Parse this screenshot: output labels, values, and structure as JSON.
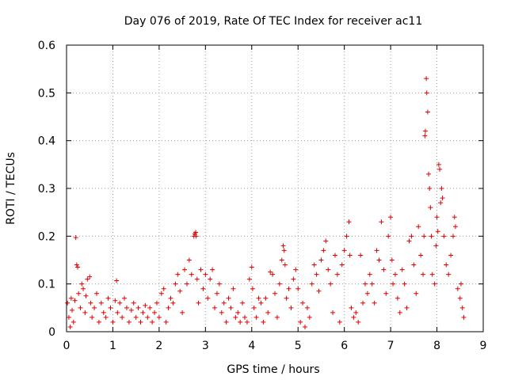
{
  "chart_data": {
    "type": "scatter",
    "title": "Day 076 of 2019, Rate Of TEC Index for receiver ac11",
    "xlabel": "GPS time / hours",
    "ylabel": "ROTI / TECUs",
    "xlim": [
      0,
      9
    ],
    "ylim": [
      0,
      0.6
    ],
    "xticks": [
      "0",
      "1",
      "2",
      "3",
      "4",
      "5",
      "6",
      "7",
      "8",
      "9"
    ],
    "yticks": [
      "0",
      "0.1",
      "0.2",
      "0.3",
      "0.4",
      "0.5",
      "0.6"
    ],
    "grid": true,
    "marker": "+",
    "color": "#e00000",
    "series": [
      {
        "name": "ROTI",
        "points": [
          [
            0.02,
            0.06
          ],
          [
            0.05,
            0.03
          ],
          [
            0.08,
            0.01
          ],
          [
            0.1,
            0.07
          ],
          [
            0.12,
            0.045
          ],
          [
            0.15,
            0.02
          ],
          [
            0.18,
            0.065
          ],
          [
            0.2,
            0.197
          ],
          [
            0.22,
            0.14
          ],
          [
            0.24,
            0.135
          ],
          [
            0.26,
            0.08
          ],
          [
            0.3,
            0.05
          ],
          [
            0.33,
            0.1
          ],
          [
            0.36,
            0.09
          ],
          [
            0.4,
            0.04
          ],
          [
            0.42,
            0.075
          ],
          [
            0.45,
            0.11
          ],
          [
            0.5,
            0.115
          ],
          [
            0.52,
            0.06
          ],
          [
            0.55,
            0.03
          ],
          [
            0.6,
            0.05
          ],
          [
            0.65,
            0.08
          ],
          [
            0.7,
            0.02
          ],
          [
            0.75,
            0.06
          ],
          [
            0.8,
            0.04
          ],
          [
            0.85,
            0.03
          ],
          [
            0.9,
            0.07
          ],
          [
            0.95,
            0.05
          ],
          [
            1.0,
            0.02
          ],
          [
            1.05,
            0.065
          ],
          [
            1.08,
            0.107
          ],
          [
            1.1,
            0.04
          ],
          [
            1.15,
            0.06
          ],
          [
            1.2,
            0.03
          ],
          [
            1.25,
            0.07
          ],
          [
            1.3,
            0.05
          ],
          [
            1.35,
            0.02
          ],
          [
            1.4,
            0.045
          ],
          [
            1.45,
            0.06
          ],
          [
            1.5,
            0.03
          ],
          [
            1.55,
            0.05
          ],
          [
            1.6,
            0.02
          ],
          [
            1.65,
            0.04
          ],
          [
            1.7,
            0.055
          ],
          [
            1.75,
            0.03
          ],
          [
            1.8,
            0.05
          ],
          [
            1.85,
            0.02
          ],
          [
            1.9,
            0.04
          ],
          [
            1.95,
            0.06
          ],
          [
            2.0,
            0.03
          ],
          [
            2.05,
            0.08
          ],
          [
            2.1,
            0.09
          ],
          [
            2.15,
            0.02
          ],
          [
            2.2,
            0.05
          ],
          [
            2.25,
            0.07
          ],
          [
            2.3,
            0.06
          ],
          [
            2.35,
            0.1
          ],
          [
            2.4,
            0.12
          ],
          [
            2.45,
            0.085
          ],
          [
            2.5,
            0.04
          ],
          [
            2.55,
            0.13
          ],
          [
            2.6,
            0.1
          ],
          [
            2.65,
            0.15
          ],
          [
            2.7,
            0.12
          ],
          [
            2.75,
            0.2
          ],
          [
            2.77,
            0.205
          ],
          [
            2.79,
            0.208
          ],
          [
            2.8,
            0.2
          ],
          [
            2.82,
            0.11
          ],
          [
            2.85,
            0.06
          ],
          [
            2.9,
            0.13
          ],
          [
            2.95,
            0.09
          ],
          [
            3.0,
            0.12
          ],
          [
            3.05,
            0.07
          ],
          [
            3.1,
            0.11
          ],
          [
            3.15,
            0.13
          ],
          [
            3.2,
            0.05
          ],
          [
            3.25,
            0.08
          ],
          [
            3.3,
            0.1
          ],
          [
            3.35,
            0.04
          ],
          [
            3.4,
            0.06
          ],
          [
            3.45,
            0.02
          ],
          [
            3.5,
            0.07
          ],
          [
            3.55,
            0.05
          ],
          [
            3.6,
            0.09
          ],
          [
            3.65,
            0.03
          ],
          [
            3.7,
            0.04
          ],
          [
            3.75,
            0.02
          ],
          [
            3.8,
            0.06
          ],
          [
            3.85,
            0.03
          ],
          [
            3.9,
            0.02
          ],
          [
            3.95,
            0.11
          ],
          [
            4.0,
            0.135
          ],
          [
            4.02,
            0.09
          ],
          [
            4.05,
            0.05
          ],
          [
            4.1,
            0.03
          ],
          [
            4.15,
            0.07
          ],
          [
            4.2,
            0.06
          ],
          [
            4.25,
            0.02
          ],
          [
            4.3,
            0.07
          ],
          [
            4.35,
            0.04
          ],
          [
            4.4,
            0.125
          ],
          [
            4.45,
            0.12
          ],
          [
            4.5,
            0.08
          ],
          [
            4.55,
            0.03
          ],
          [
            4.6,
            0.1
          ],
          [
            4.65,
            0.15
          ],
          [
            4.68,
            0.18
          ],
          [
            4.7,
            0.17
          ],
          [
            4.72,
            0.14
          ],
          [
            4.75,
            0.07
          ],
          [
            4.8,
            0.09
          ],
          [
            4.85,
            0.05
          ],
          [
            4.9,
            0.11
          ],
          [
            4.95,
            0.13
          ],
          [
            5.0,
            0.09
          ],
          [
            5.05,
            0.02
          ],
          [
            5.1,
            0.06
          ],
          [
            5.15,
            0.01
          ],
          [
            5.2,
            0.05
          ],
          [
            5.25,
            0.03
          ],
          [
            5.3,
            0.1
          ],
          [
            5.35,
            0.14
          ],
          [
            5.4,
            0.12
          ],
          [
            5.45,
            0.085
          ],
          [
            5.5,
            0.15
          ],
          [
            5.55,
            0.17
          ],
          [
            5.6,
            0.19
          ],
          [
            5.65,
            0.13
          ],
          [
            5.7,
            0.1
          ],
          [
            5.75,
            0.04
          ],
          [
            5.8,
            0.16
          ],
          [
            5.85,
            0.12
          ],
          [
            5.9,
            0.02
          ],
          [
            5.95,
            0.14
          ],
          [
            6.0,
            0.17
          ],
          [
            6.05,
            0.2
          ],
          [
            6.1,
            0.23
          ],
          [
            6.12,
            0.16
          ],
          [
            6.15,
            0.05
          ],
          [
            6.2,
            0.03
          ],
          [
            6.25,
            0.04
          ],
          [
            6.3,
            0.02
          ],
          [
            6.35,
            0.16
          ],
          [
            6.4,
            0.06
          ],
          [
            6.45,
            0.1
          ],
          [
            6.5,
            0.08
          ],
          [
            6.55,
            0.12
          ],
          [
            6.6,
            0.1
          ],
          [
            6.65,
            0.06
          ],
          [
            6.7,
            0.17
          ],
          [
            6.75,
            0.15
          ],
          [
            6.8,
            0.23
          ],
          [
            6.85,
            0.13
          ],
          [
            6.9,
            0.08
          ],
          [
            6.95,
            0.2
          ],
          [
            7.0,
            0.24
          ],
          [
            7.03,
            0.15
          ],
          [
            7.05,
            0.1
          ],
          [
            7.1,
            0.12
          ],
          [
            7.15,
            0.07
          ],
          [
            7.2,
            0.04
          ],
          [
            7.25,
            0.13
          ],
          [
            7.3,
            0.1
          ],
          [
            7.35,
            0.05
          ],
          [
            7.4,
            0.19
          ],
          [
            7.45,
            0.2
          ],
          [
            7.5,
            0.14
          ],
          [
            7.55,
            0.08
          ],
          [
            7.6,
            0.22
          ],
          [
            7.65,
            0.16
          ],
          [
            7.7,
            0.12
          ],
          [
            7.72,
            0.2
          ],
          [
            7.74,
            0.41
          ],
          [
            7.75,
            0.42
          ],
          [
            7.77,
            0.53
          ],
          [
            7.78,
            0.5
          ],
          [
            7.8,
            0.46
          ],
          [
            7.82,
            0.33
          ],
          [
            7.84,
            0.3
          ],
          [
            7.86,
            0.26
          ],
          [
            7.88,
            0.2
          ],
          [
            7.9,
            0.12
          ],
          [
            7.95,
            0.1
          ],
          [
            7.98,
            0.18
          ],
          [
            8.0,
            0.24
          ],
          [
            8.02,
            0.21
          ],
          [
            8.04,
            0.35
          ],
          [
            8.06,
            0.34
          ],
          [
            8.08,
            0.27
          ],
          [
            8.1,
            0.3
          ],
          [
            8.12,
            0.28
          ],
          [
            8.15,
            0.2
          ],
          [
            8.2,
            0.14
          ],
          [
            8.25,
            0.12
          ],
          [
            8.3,
            0.16
          ],
          [
            8.35,
            0.2
          ],
          [
            8.38,
            0.24
          ],
          [
            8.4,
            0.22
          ],
          [
            8.45,
            0.09
          ],
          [
            8.5,
            0.07
          ],
          [
            8.52,
            0.1
          ],
          [
            8.55,
            0.05
          ],
          [
            8.58,
            0.03
          ]
        ]
      }
    ]
  }
}
